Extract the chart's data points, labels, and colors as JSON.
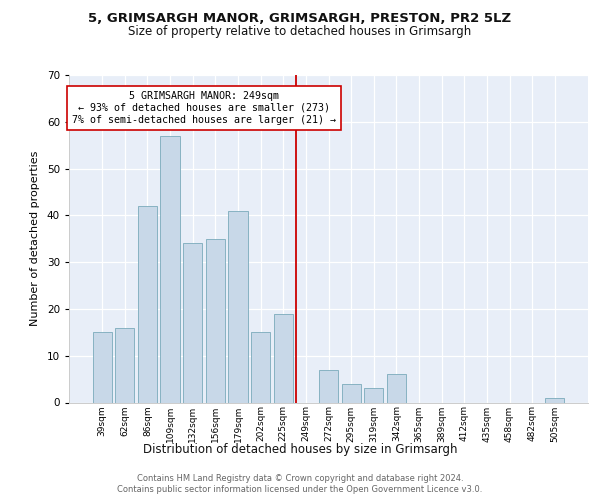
{
  "title1": "5, GRIMSARGH MANOR, GRIMSARGH, PRESTON, PR2 5LZ",
  "title2": "Size of property relative to detached houses in Grimsargh",
  "xlabel": "Distribution of detached houses by size in Grimsargh",
  "ylabel": "Number of detached properties",
  "bar_labels": [
    "39sqm",
    "62sqm",
    "86sqm",
    "109sqm",
    "132sqm",
    "156sqm",
    "179sqm",
    "202sqm",
    "225sqm",
    "249sqm",
    "272sqm",
    "295sqm",
    "319sqm",
    "342sqm",
    "365sqm",
    "389sqm",
    "412sqm",
    "435sqm",
    "458sqm",
    "482sqm",
    "505sqm"
  ],
  "bar_values": [
    15,
    16,
    42,
    57,
    34,
    35,
    41,
    15,
    19,
    0,
    7,
    4,
    3,
    6,
    0,
    0,
    0,
    0,
    0,
    0,
    1
  ],
  "bar_color": "#c8d8e8",
  "bar_edge_color": "#7aaabb",
  "vline_color": "#cc0000",
  "annotation_box_edge": "#cc0000",
  "ylim": [
    0,
    70
  ],
  "yticks": [
    0,
    10,
    20,
    30,
    40,
    50,
    60,
    70
  ],
  "plot_bg_color": "#e8eef8",
  "annotation_title": "5 GRIMSARGH MANOR: 249sqm",
  "annotation_line1": "← 93% of detached houses are smaller (273)",
  "annotation_line2": "7% of semi-detached houses are larger (21) →",
  "footer1": "Contains HM Land Registry data © Crown copyright and database right 2024.",
  "footer2": "Contains public sector information licensed under the Open Government Licence v3.0."
}
